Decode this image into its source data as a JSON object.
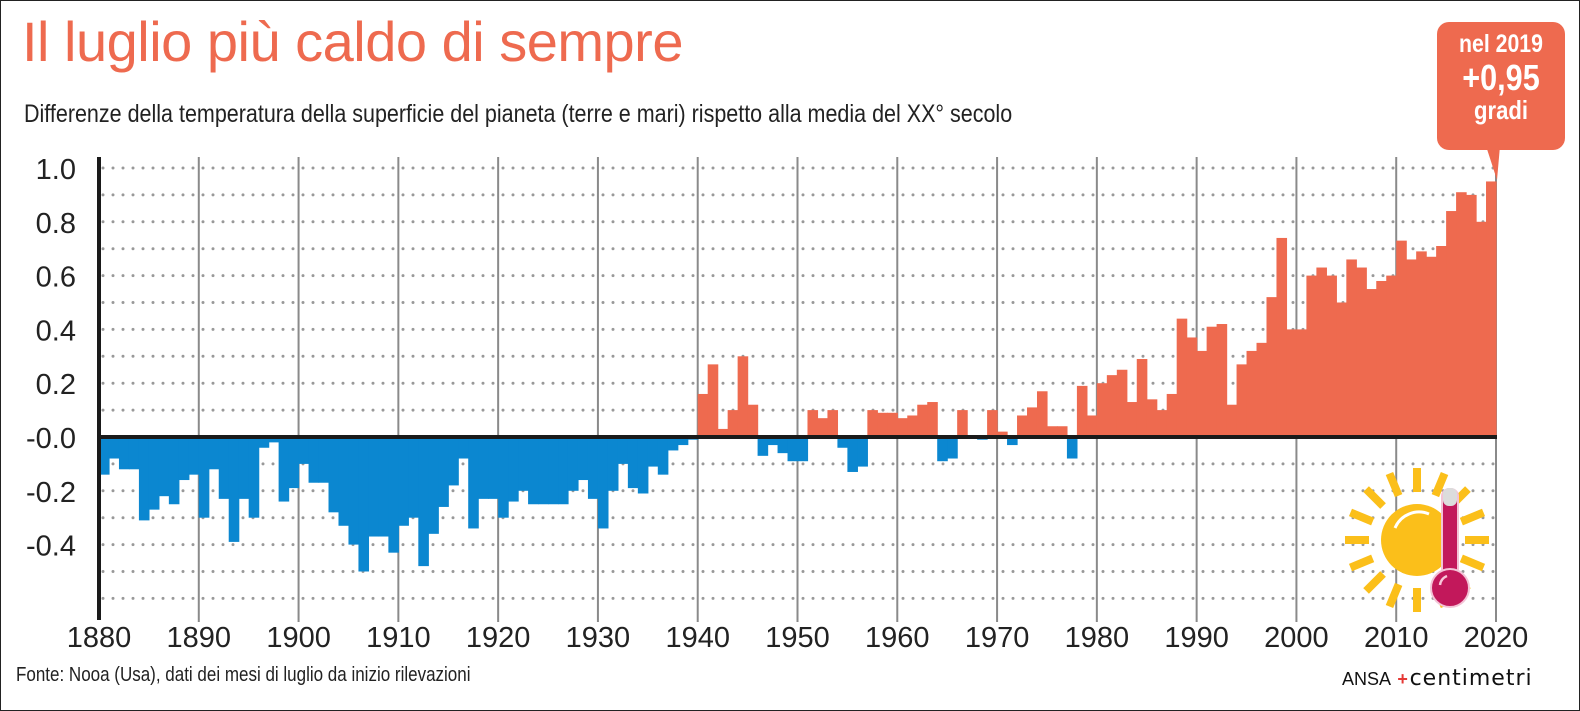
{
  "title": "Il luglio più caldo di sempre",
  "subtitle": "Differenze della temperatura della superficie del pianeta (terre e mari) rispetto alla media del XX° secolo",
  "callout": {
    "line1": "nel 2019",
    "line2": "+0,95",
    "line3": "gradi"
  },
  "footer": "Fonte: Nooa (Usa), dati dei mesi di luglio da inizio rilevazioni",
  "logo": {
    "ansa": "ANSA",
    "centimetri": "centimetri"
  },
  "colors": {
    "positive": "#ee6a4f",
    "negative": "#0b87d0",
    "title": "#ee6a4f",
    "sun": "#fbbf1a",
    "thermometer": "#c2185b"
  },
  "icons": [
    "sun-icon",
    "thermometer-icon"
  ],
  "chart_data": {
    "type": "bar",
    "title": "Il luglio più caldo di sempre",
    "xlabel": "",
    "ylabel": "",
    "ylim": [
      -0.6,
      1.0
    ],
    "xlim": [
      1880,
      2020
    ],
    "grid": true,
    "y_ticks": [
      "1.0",
      "0.8",
      "0.6",
      "0.4",
      "0.2",
      "-0.0",
      "-0.2",
      "-0.4"
    ],
    "y_tick_values": [
      1.0,
      0.8,
      0.6,
      0.4,
      0.2,
      0.0,
      -0.2,
      -0.4
    ],
    "x_ticks": [
      "1880",
      "1890",
      "1900",
      "1910",
      "1920",
      "1930",
      "1940",
      "1950",
      "1960",
      "1970",
      "1980",
      "1990",
      "2000",
      "2010",
      "2020"
    ],
    "x_tick_values": [
      1880,
      1890,
      1900,
      1910,
      1920,
      1930,
      1940,
      1950,
      1960,
      1970,
      1980,
      1990,
      2000,
      2010,
      2020
    ],
    "start_year": 1880,
    "values": [
      -0.14,
      -0.08,
      -0.12,
      -0.12,
      -0.31,
      -0.27,
      -0.22,
      -0.25,
      -0.16,
      -0.14,
      -0.3,
      -0.12,
      -0.23,
      -0.39,
      -0.23,
      -0.3,
      -0.04,
      -0.02,
      -0.24,
      -0.19,
      -0.1,
      -0.17,
      -0.17,
      -0.28,
      -0.33,
      -0.4,
      -0.5,
      -0.37,
      -0.37,
      -0.43,
      -0.33,
      -0.3,
      -0.48,
      -0.36,
      -0.26,
      -0.18,
      -0.08,
      -0.34,
      -0.23,
      -0.23,
      -0.3,
      -0.24,
      -0.2,
      -0.25,
      -0.25,
      -0.25,
      -0.25,
      -0.2,
      -0.16,
      -0.23,
      -0.34,
      -0.2,
      -0.1,
      -0.19,
      -0.21,
      -0.11,
      -0.14,
      -0.05,
      -0.03,
      -0.01,
      0.16,
      0.27,
      0.03,
      0.1,
      0.3,
      0.12,
      -0.07,
      -0.03,
      -0.06,
      -0.09,
      -0.09,
      0.1,
      0.07,
      0.1,
      -0.04,
      -0.13,
      -0.11,
      0.1,
      0.09,
      0.09,
      0.07,
      0.08,
      0.12,
      0.13,
      -0.09,
      -0.08,
      0.1,
      0.0,
      -0.01,
      0.1,
      0.02,
      -0.03,
      0.08,
      0.11,
      0.17,
      0.04,
      0.04,
      -0.08,
      0.19,
      0.08,
      0.2,
      0.23,
      0.25,
      0.13,
      0.29,
      0.14,
      0.1,
      0.16,
      0.44,
      0.37,
      0.32,
      0.41,
      0.42,
      0.12,
      0.27,
      0.32,
      0.35,
      0.52,
      0.74,
      0.4,
      0.4,
      0.6,
      0.63,
      0.6,
      0.5,
      0.66,
      0.63,
      0.55,
      0.58,
      0.6,
      0.73,
      0.66,
      0.69,
      0.67,
      0.71,
      0.84,
      0.91,
      0.9,
      0.8,
      0.95
    ]
  }
}
